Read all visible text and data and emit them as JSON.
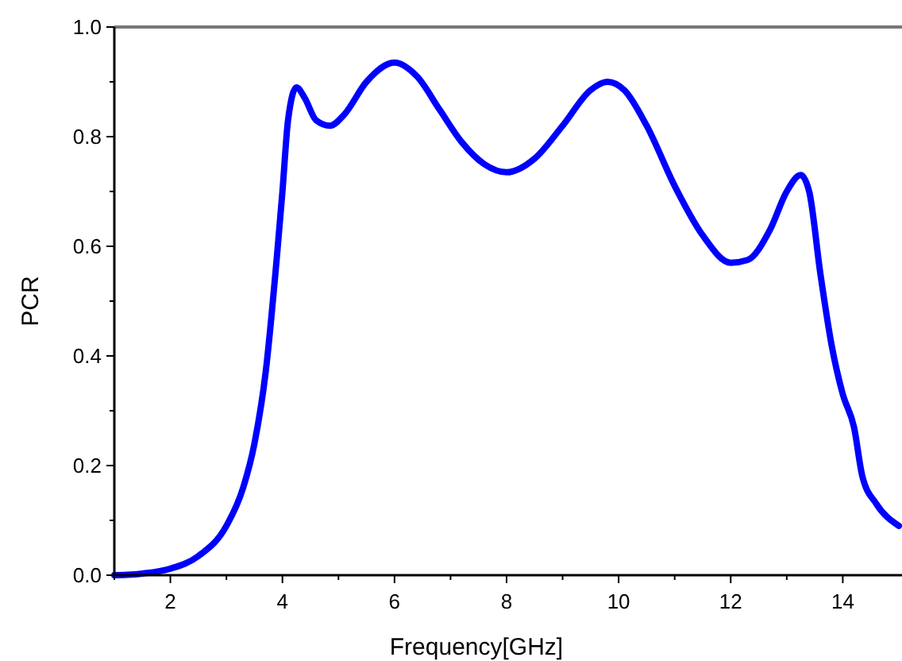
{
  "chart_data": {
    "type": "line",
    "xlabel": "Frequency[GHz]",
    "ylabel": "PCR",
    "xlim": [
      1,
      15
    ],
    "ylim": [
      0,
      1
    ],
    "xticks": [
      {
        "value": 1,
        "label": null
      },
      2,
      {
        "value": 3,
        "label": null
      },
      4,
      {
        "value": 5,
        "label": null
      },
      6,
      {
        "value": 7,
        "label": null
      },
      8,
      {
        "value": 9,
        "label": null
      },
      10,
      {
        "value": 11,
        "label": null
      },
      12,
      {
        "value": 13,
        "label": null
      },
      14
    ],
    "yticks": [
      {
        "value": 0,
        "label": "0.0"
      },
      {
        "value": 0.1,
        "label": null
      },
      {
        "value": 0.2,
        "label": "0.2"
      },
      {
        "value": 0.3,
        "label": null
      },
      {
        "value": 0.4,
        "label": "0.4"
      },
      {
        "value": 0.5,
        "label": null
      },
      {
        "value": 0.6,
        "label": "0.6"
      },
      {
        "value": 0.7,
        "label": null
      },
      {
        "value": 0.8,
        "label": "0.8"
      },
      {
        "value": 0.9,
        "label": null
      },
      {
        "value": 1,
        "label": "1.0"
      }
    ],
    "grid": false,
    "marker": "none",
    "line_style": "solid",
    "series": [
      {
        "color": "#0000ff",
        "x": [
          1,
          1.5,
          2,
          2.5,
          3,
          3.3,
          3.5,
          3.7,
          3.9,
          4.0,
          4.1,
          4.25,
          4.4,
          4.6,
          4.85,
          5.1,
          5.5,
          6.0,
          6.4,
          6.8,
          7.2,
          7.6,
          8.0,
          8.5,
          9.0,
          9.5,
          9.8,
          10.1,
          10.5,
          11.0,
          11.5,
          12.0,
          12.3,
          12.7,
          13.0,
          13.25,
          13.4,
          13.6,
          13.8,
          14.0,
          14.2,
          14.35,
          14.6,
          15
        ],
        "values": [
          0,
          0.003,
          0.012,
          0.035,
          0.09,
          0.16,
          0.24,
          0.37,
          0.58,
          0.7,
          0.83,
          0.89,
          0.87,
          0.83,
          0.82,
          0.84,
          0.9,
          0.935,
          0.91,
          0.85,
          0.79,
          0.75,
          0.735,
          0.76,
          0.82,
          0.885,
          0.9,
          0.885,
          0.82,
          0.71,
          0.62,
          0.57,
          0.575,
          0.63,
          0.7,
          0.73,
          0.7,
          0.55,
          0.42,
          0.33,
          0.27,
          0.18,
          0.13,
          0.09
        ]
      }
    ]
  }
}
